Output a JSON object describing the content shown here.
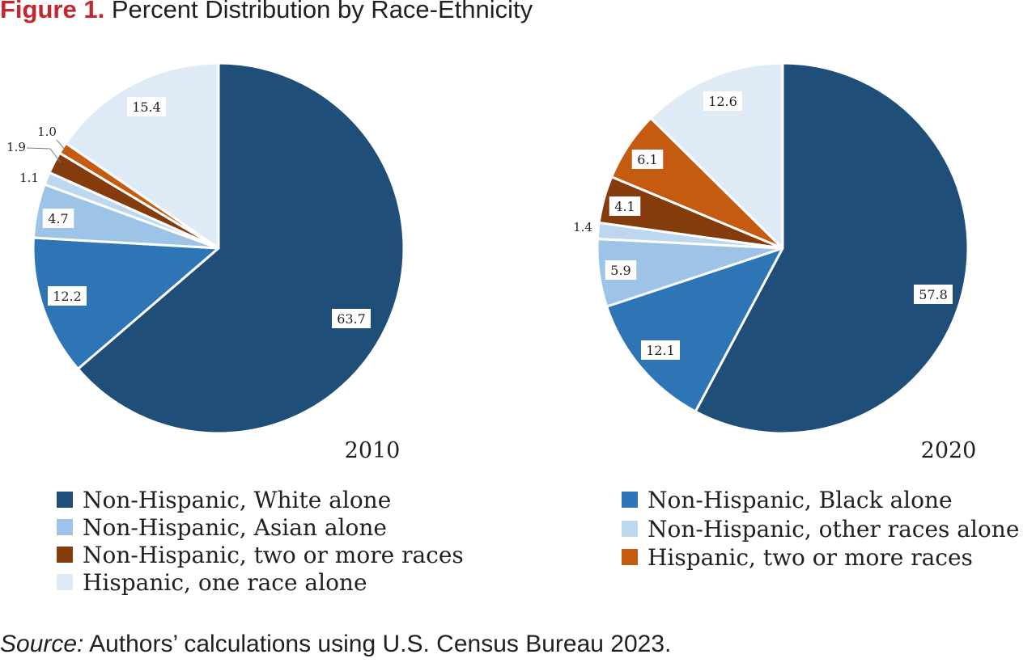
{
  "figure": {
    "label": "Figure 1.",
    "title": "Percent Distribution by Race-Ethnicity"
  },
  "source": {
    "label": "Source:",
    "text": " Authors’ calculations using U.S. Census Bureau 2023."
  },
  "categories": [
    "Non-Hispanic, White alone",
    "Non-Hispanic, Black alone",
    "Non-Hispanic, Asian alone",
    "Non-Hispanic, other races alone",
    "Non-Hispanic, two or more races",
    "Hispanic, two or more races",
    "Hispanic, one race alone"
  ],
  "colors": [
    "#1f4e79",
    "#2e75b6",
    "#9dc3e6",
    "#bdd7ee",
    "#843c0c",
    "#c55a11",
    "#deebf7"
  ],
  "chart_data": [
    {
      "type": "pie",
      "title": "2010",
      "categories": [
        "Non-Hispanic, White alone",
        "Non-Hispanic, Black alone",
        "Non-Hispanic, Asian alone",
        "Non-Hispanic, other races alone",
        "Non-Hispanic, two or more races",
        "Hispanic, two or more races",
        "Hispanic, one race alone"
      ],
      "values": [
        63.7,
        12.2,
        4.7,
        1.1,
        1.9,
        1.0,
        15.4
      ],
      "labels": [
        "63.7",
        "12.2",
        "4.7",
        "1.1",
        "1.9",
        "1.0",
        "15.4"
      ]
    },
    {
      "type": "pie",
      "title": "2020",
      "categories": [
        "Non-Hispanic, White alone",
        "Non-Hispanic, Black alone",
        "Non-Hispanic, Asian alone",
        "Non-Hispanic, other races alone",
        "Non-Hispanic, two or more races",
        "Hispanic, two or more races",
        "Hispanic, one race alone"
      ],
      "values": [
        57.8,
        12.1,
        5.9,
        1.4,
        4.1,
        6.1,
        12.6
      ],
      "labels": [
        "57.8",
        "12.1",
        "5.9",
        "1.4",
        "4.1",
        "6.1",
        "12.6"
      ]
    }
  ],
  "legend": {
    "left": [
      "Non-Hispanic, White alone",
      "Non-Hispanic, Asian alone",
      "Non-Hispanic, two or more races",
      "Hispanic, one race alone"
    ],
    "right": [
      "Non-Hispanic, Black alone",
      "Non-Hispanic, other races alone",
      "Hispanic, two or more races"
    ]
  }
}
